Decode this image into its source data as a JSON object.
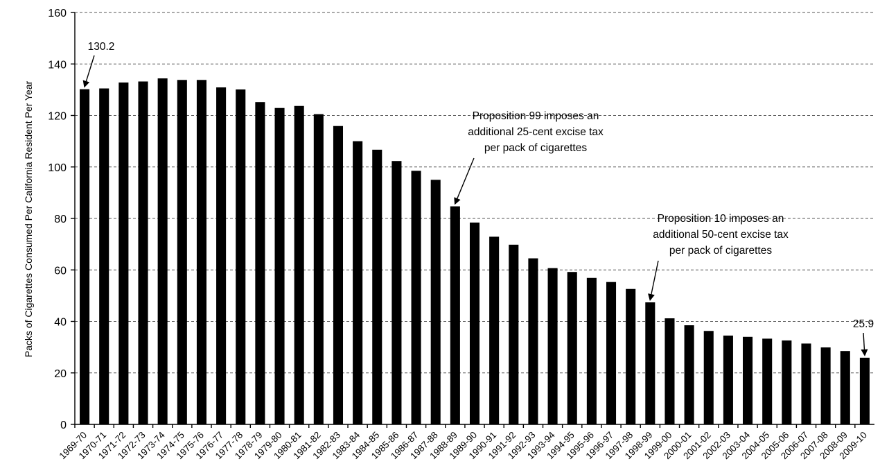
{
  "chart_data": {
    "type": "bar",
    "ylabel": "Packs of Cigarettes Consumed Per California Resident Per Year",
    "ylim": [
      0,
      160
    ],
    "yticks": [
      0,
      20,
      40,
      60,
      80,
      100,
      120,
      140,
      160
    ],
    "grid": true,
    "categories": [
      "1969-70",
      "1970-71",
      "1971-72",
      "1972-73",
      "1973-74",
      "1974-75",
      "1975-76",
      "1976-77",
      "1977-78",
      "1978-79",
      "1979-80",
      "1980-81",
      "1981-82",
      "1982-83",
      "1983-84",
      "1984-85",
      "1985-86",
      "1986-87",
      "1987-88",
      "1988-89",
      "1989-90",
      "1990-91",
      "1991-92",
      "1992-93",
      "1993-94",
      "1994-95",
      "1995-96",
      "1996-97",
      "1997-98",
      "1998-99",
      "1999-00",
      "2000-01",
      "2001-02",
      "2002-03",
      "2003-04",
      "2004-05",
      "2005-06",
      "2006-07",
      "2007-08",
      "2008-09",
      "2009-10"
    ],
    "values": [
      130.2,
      130.5,
      132.8,
      133.2,
      134.4,
      133.8,
      133.8,
      130.9,
      130.1,
      125.2,
      122.9,
      123.7,
      120.5,
      115.9,
      110.0,
      106.7,
      102.3,
      98.5,
      95.0,
      84.7,
      78.4,
      72.9,
      69.8,
      64.5,
      60.7,
      59.2,
      56.9,
      55.3,
      52.6,
      47.4,
      41.2,
      38.5,
      36.3,
      34.5,
      34.0,
      33.3,
      32.6,
      31.4,
      29.9,
      28.5,
      25.9
    ],
    "annotations": [
      {
        "lines": [
          "130.2"
        ],
        "category": "1969-70"
      },
      {
        "lines": [
          "Proposition 99 imposes an",
          "additional 25-cent excise tax",
          "per pack of cigarettes"
        ],
        "category": "1988-89"
      },
      {
        "lines": [
          "Proposition 10 imposes an",
          "additional 50-cent excise tax",
          "per pack of cigarettes"
        ],
        "category": "1998-99"
      },
      {
        "lines": [
          "25.9"
        ],
        "category": "2009-10"
      }
    ]
  }
}
